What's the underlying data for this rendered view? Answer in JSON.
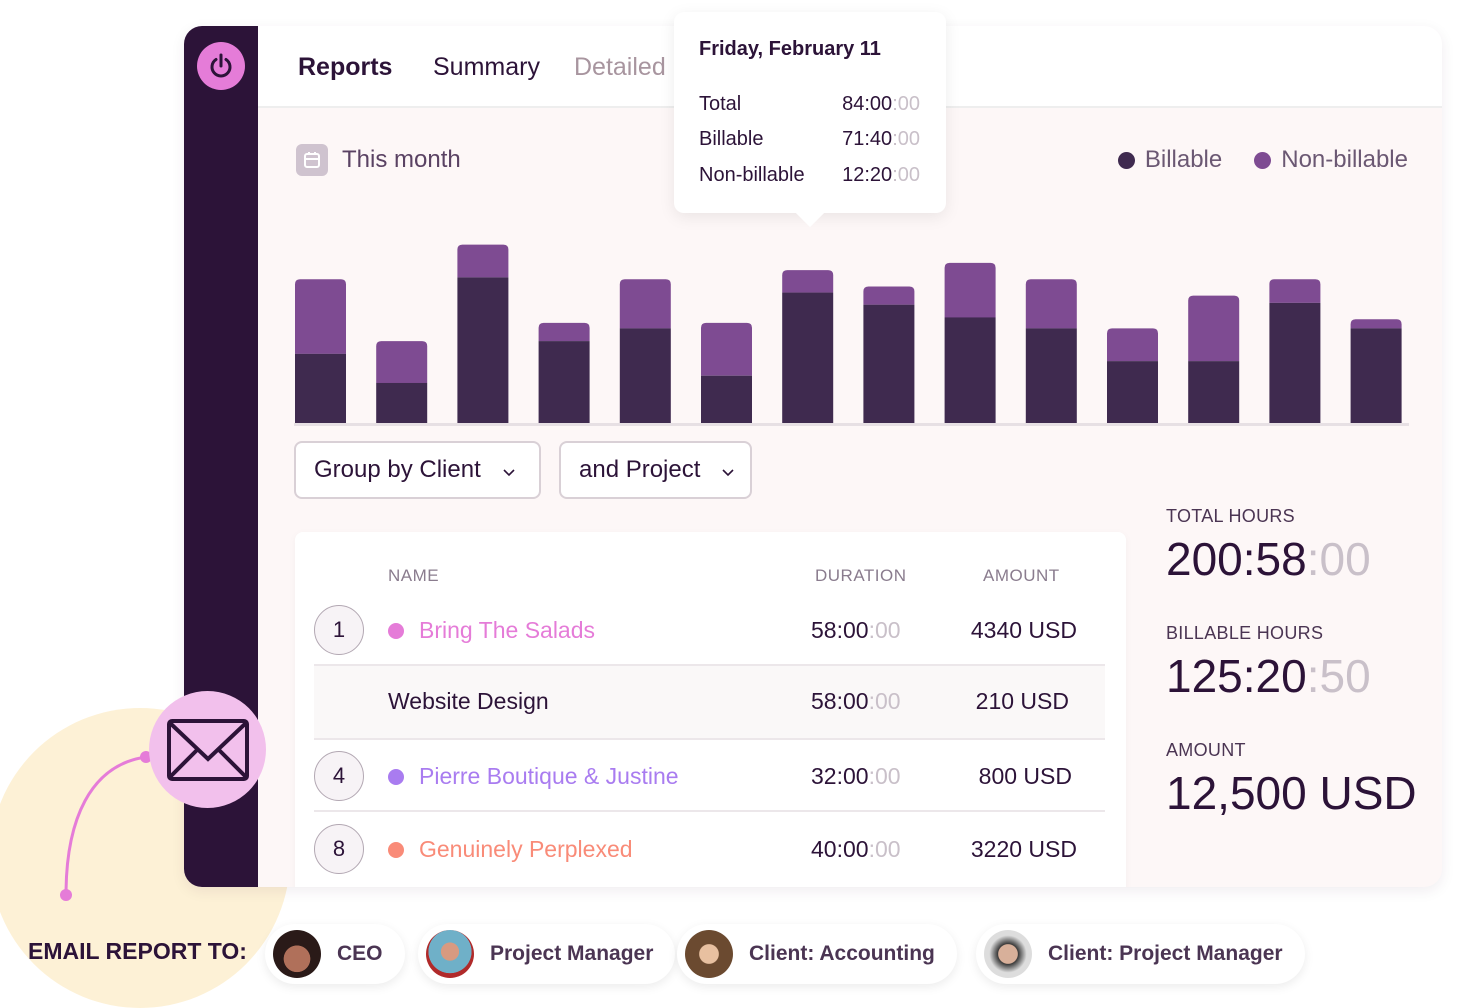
{
  "header": {
    "tabs": [
      {
        "label": "Reports",
        "state": "active"
      },
      {
        "label": "Summary"
      },
      {
        "label": "Detailed"
      }
    ]
  },
  "period": {
    "label": "This month",
    "icon": "calendar-icon"
  },
  "legend": [
    {
      "label": "Billable",
      "color": "#3f2a4f"
    },
    {
      "label": "Non-billable",
      "color": "#7e4b92"
    }
  ],
  "chart_data": {
    "type": "bar",
    "stacked": true,
    "title": "",
    "xlabel": "",
    "ylabel": "",
    "series": [
      {
        "name": "Billable",
        "color": "#3f2a4f",
        "values": [
          38,
          22,
          80,
          45,
          52,
          26,
          71.67,
          65,
          58,
          52,
          34,
          34,
          66,
          52
        ]
      },
      {
        "name": "Non-billable",
        "color": "#7e4b92",
        "values": [
          41,
          23,
          18,
          10,
          27,
          29,
          12.33,
          10,
          30,
          27,
          18,
          36,
          13,
          5
        ]
      }
    ],
    "ylim": [
      0,
      120
    ],
    "grid": false,
    "legend": "top-right"
  },
  "tooltip": {
    "title": "Friday, February 11",
    "rows": [
      {
        "label": "Total",
        "main": "84:00",
        "sec": ":00"
      },
      {
        "label": "Billable",
        "main": "71:40",
        "sec": ":00"
      },
      {
        "label": "Non-billable",
        "main": "12:20",
        "sec": ":00"
      }
    ]
  },
  "filters": {
    "group": "Group by Client",
    "sub": "and Project"
  },
  "table": {
    "headers": {
      "name": "NAME",
      "duration": "DURATION",
      "amount": "AMOUNT"
    },
    "rows": [
      {
        "num": "1",
        "name": "Bring The Salads",
        "color": "#e57cd8",
        "dur": "58:00",
        "sec": ":00",
        "amount": "4340 USD"
      },
      {
        "num": "",
        "name": "Website Design",
        "color": "",
        "dur": "58:00",
        "sec": ":00",
        "amount": "210 USD"
      },
      {
        "num": "4",
        "name": "Pierre Boutique & Justine",
        "color": "#a97cf0",
        "dur": "32:00",
        "sec": ":00",
        "amount": "800 USD"
      },
      {
        "num": "8",
        "name": "Genuinely Perplexed",
        "color": "#f98b78",
        "dur": "40:00",
        "sec": ":00",
        "amount": "3220 USD"
      }
    ]
  },
  "stats": {
    "total_label": "TOTAL HOURS",
    "total": "200:58",
    "total_sec": ":00",
    "billable_label": "BILLABLE HOURS",
    "billable": "125:20",
    "billable_sec": ":50",
    "amount_label": "AMOUNT",
    "amount": "12,500 USD"
  },
  "email": {
    "label": "EMAIL REPORT TO:",
    "recipients": [
      "CEO",
      "Project Manager",
      "Client: Accounting",
      "Client: Project Manager"
    ]
  }
}
